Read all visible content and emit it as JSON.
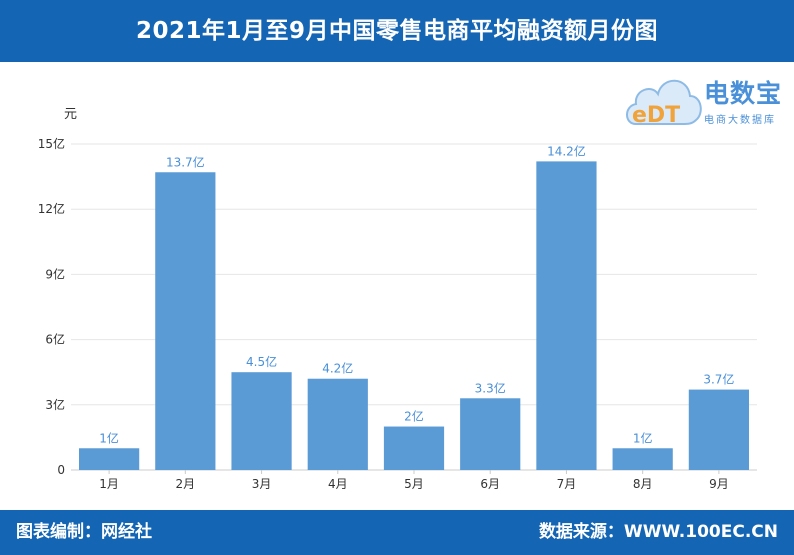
{
  "header": {
    "title": "2021年1月至9月中国零售电商平均融资额月份图"
  },
  "logo": {
    "brand": "电数宝",
    "subtitle": "电商大数据库",
    "mark": "eDT"
  },
  "footer": {
    "credit": "图表编制：网经社",
    "source": "数据来源：WWW.100EC.CN"
  },
  "colors": {
    "header_bg": "#1565b5",
    "bar": "#5b9bd5",
    "data_label": "#4a90d9",
    "grid": "#e6e6e6"
  },
  "chart_data": {
    "type": "bar",
    "title": "2021年1月至9月中国零售电商平均融资额月份图",
    "ylabel": "元",
    "xlabel": "",
    "categories": [
      "1月",
      "2月",
      "3月",
      "4月",
      "5月",
      "6月",
      "7月",
      "8月",
      "9月"
    ],
    "values": [
      1,
      13.7,
      4.5,
      4.2,
      2,
      3.3,
      14.2,
      1,
      3.7
    ],
    "data_labels": [
      "1亿",
      "13.7亿",
      "4.5亿",
      "4.2亿",
      "2亿",
      "3.3亿",
      "14.2亿",
      "1亿",
      "3.7亿"
    ],
    "ylim": [
      0,
      15
    ],
    "yticks": [
      0,
      3,
      6,
      9,
      12,
      15
    ],
    "ytick_labels": [
      "0",
      "3亿",
      "6亿",
      "9亿",
      "12亿",
      "15亿"
    ],
    "grid": true,
    "legend": "none"
  }
}
